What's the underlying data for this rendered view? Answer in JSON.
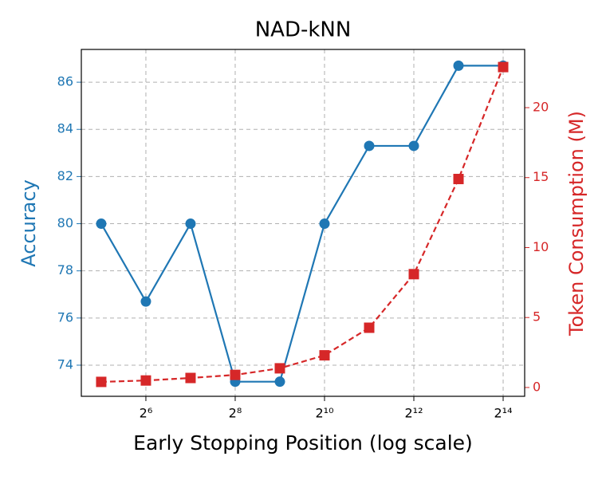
{
  "chart_data": {
    "type": "line",
    "title": "NAD-kNN",
    "x_label": "Early Stopping Position (log scale)",
    "y_label": "Accuracy",
    "y2_label": "Token Consumption (M)",
    "x_log_base": 2,
    "grid": true,
    "x": [
      32,
      64,
      128,
      256,
      512,
      1024,
      2048,
      4096,
      8192,
      16384
    ],
    "xlim": [
      23.5,
      22880
    ],
    "xticks": [
      {
        "value": 64,
        "label": "2⁶"
      },
      {
        "value": 256,
        "label": "2⁸"
      },
      {
        "value": 1024,
        "label": "2¹⁰"
      },
      {
        "value": 4096,
        "label": "2¹²"
      },
      {
        "value": 16384,
        "label": "2¹⁴"
      }
    ],
    "ylim": [
      72.68,
      87.39
    ],
    "yticks": [
      74,
      76,
      78,
      80,
      82,
      84,
      86
    ],
    "y2lim": [
      -0.63,
      24.16
    ],
    "y2ticks": [
      0,
      5,
      10,
      15,
      20
    ],
    "series": [
      {
        "name": "Accuracy",
        "color": "#1f77b4",
        "marker": "circle",
        "dashed": false,
        "values": [
          80,
          76.7,
          80,
          73.3,
          73.3,
          80,
          83.3,
          83.3,
          86.7,
          86.7
        ]
      },
      {
        "name": "Token Consumption (M)",
        "color": "#d62728",
        "marker": "square",
        "dashed": true,
        "axis": "y2",
        "values": [
          0.4,
          0.5,
          0.68,
          0.9,
          1.37,
          2.3,
          4.27,
          8.1,
          14.9,
          22.9
        ]
      }
    ]
  }
}
